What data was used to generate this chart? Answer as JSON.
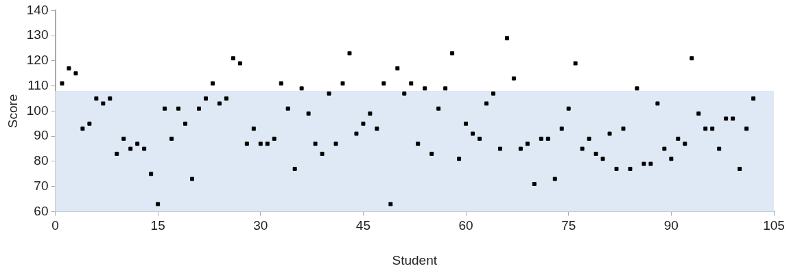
{
  "chart_data": {
    "type": "scatter",
    "xlabel": "Student",
    "ylabel": "Score",
    "x": [
      1,
      2,
      3,
      4,
      5,
      6,
      7,
      8,
      9,
      10,
      11,
      12,
      13,
      14,
      15,
      16,
      17,
      18,
      19,
      20,
      21,
      22,
      23,
      24,
      25,
      26,
      27,
      28,
      29,
      30,
      31,
      32,
      33,
      34,
      35,
      36,
      37,
      38,
      39,
      40,
      41,
      42,
      43,
      44,
      45,
      46,
      47,
      48,
      49,
      50,
      51,
      52,
      53,
      54,
      55,
      56,
      57,
      58,
      59,
      60,
      61,
      62,
      63,
      64,
      65,
      66,
      67,
      68,
      69,
      70,
      71,
      72,
      73,
      74,
      75,
      76,
      77,
      78,
      79,
      80,
      81,
      82,
      83,
      84,
      85,
      86,
      87,
      88,
      89,
      90,
      91,
      92,
      93,
      94,
      95,
      96,
      97,
      98,
      99,
      100,
      101,
      102
    ],
    "series": [
      {
        "color": "#000000",
        "values": [
          111,
          117,
          115,
          93,
          95,
          105,
          103,
          105,
          83,
          89,
          85,
          87,
          85,
          75,
          63,
          101,
          89,
          101,
          95,
          73,
          101,
          105,
          111,
          103,
          105,
          121,
          119,
          87,
          93,
          87,
          87,
          89,
          111,
          101,
          77,
          109,
          99,
          87,
          83,
          107,
          87,
          111,
          123,
          91,
          95,
          99,
          93,
          111,
          63,
          117,
          107,
          111,
          87,
          109,
          83,
          101,
          109,
          123,
          81,
          95,
          91,
          89,
          103,
          107,
          85,
          129,
          113,
          85,
          87,
          71,
          89,
          89,
          73,
          93,
          101,
          119,
          85,
          89,
          83,
          81,
          91,
          77,
          93,
          77,
          109,
          79,
          79,
          103,
          85,
          81,
          89,
          87,
          121,
          99,
          93,
          93,
          85,
          97,
          97,
          77,
          93,
          105
        ]
      }
    ],
    "bands": [
      {
        "axis": "y",
        "from": 60,
        "to": 108,
        "color": "#dfe9f5"
      }
    ],
    "xlim": [
      0,
      105
    ],
    "xticks": [
      0,
      15,
      30,
      45,
      60,
      75,
      90,
      105
    ],
    "ylim": [
      60,
      140
    ],
    "yticks": [
      60,
      70,
      80,
      90,
      100,
      110,
      120,
      130,
      140
    ],
    "grid": false,
    "legend": false,
    "marker": "square"
  }
}
